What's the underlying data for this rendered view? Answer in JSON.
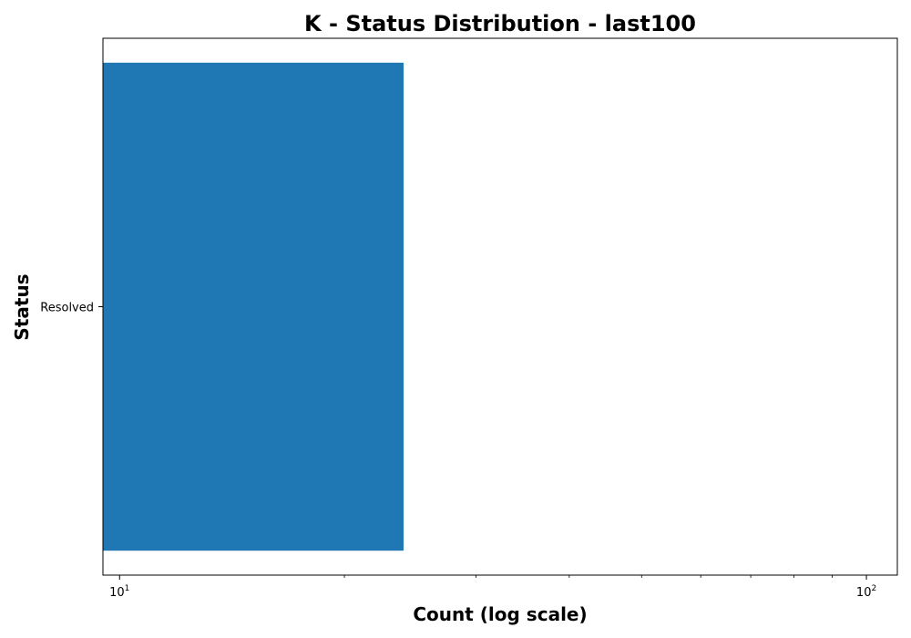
{
  "chart_data": {
    "type": "bar",
    "orientation": "horizontal",
    "title": "K - Status Distribution - last100",
    "xlabel": "Count (log scale)",
    "ylabel": "Status",
    "x_scale": "log",
    "xlim": [
      9.5,
      110
    ],
    "major_ticks": [
      {
        "value": 10,
        "base": "10",
        "exponent": "1"
      },
      {
        "value": 100,
        "base": "10",
        "exponent": "2"
      }
    ],
    "categories": [
      "Resolved"
    ],
    "values": [
      24
    ],
    "bar_color": "#1f77b4",
    "grid": false,
    "legend": "none"
  }
}
